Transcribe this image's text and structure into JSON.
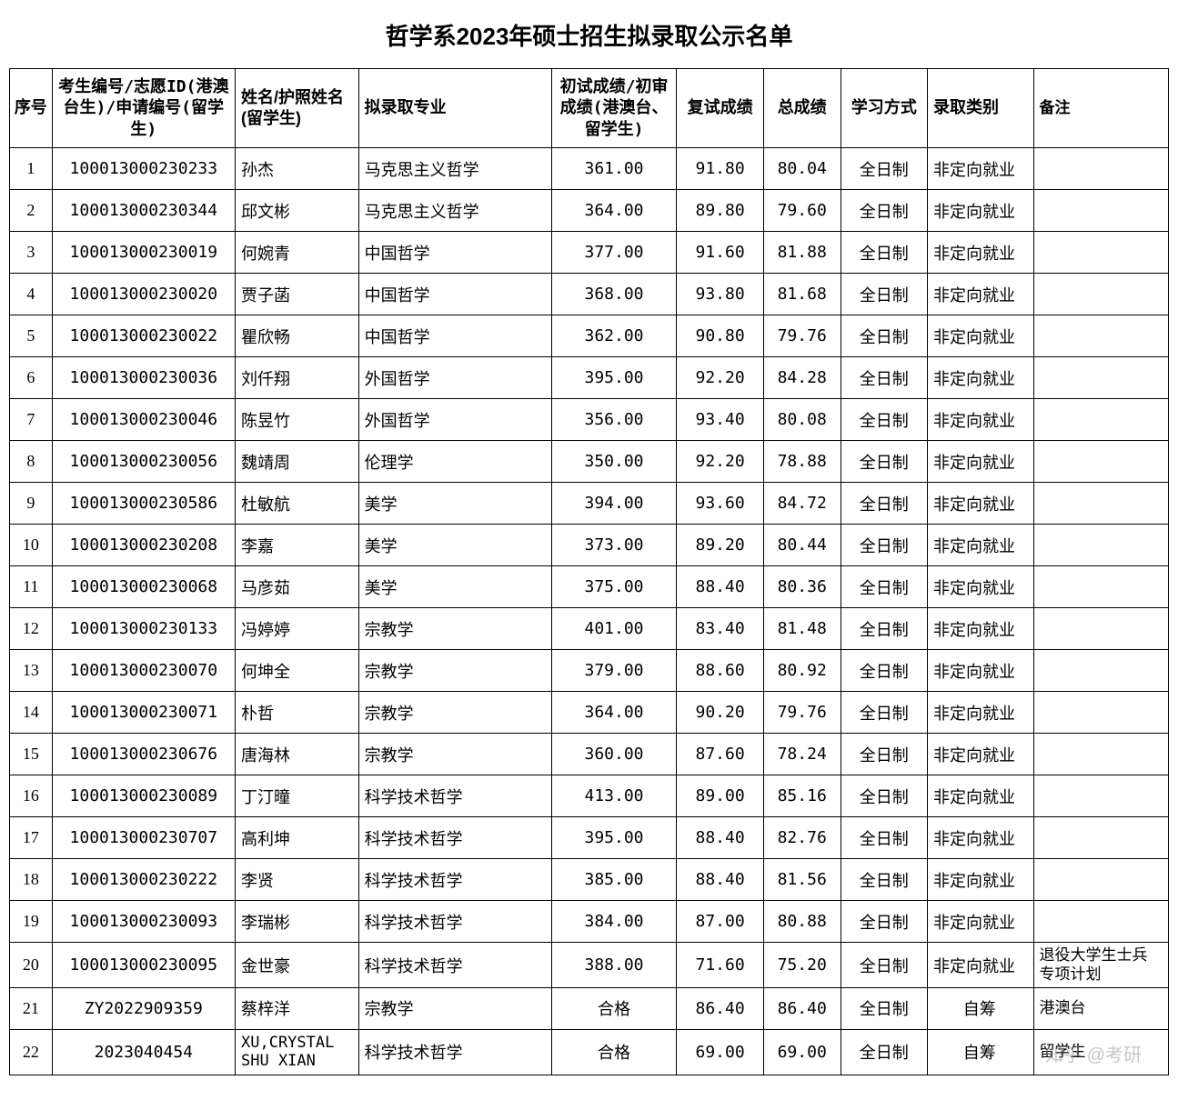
{
  "title": "哲学系2023年硕士招生拟录取公示名单",
  "watermark": "知乎 @考研",
  "columns": {
    "seq": "序号",
    "id": "考生编号/志愿ID(港澳台生)/申请编号(留学生)",
    "name": "姓名/护照姓名(留学生)",
    "major": "拟录取专业",
    "prelim": "初试成绩/初审成绩(港澳台、留学生)",
    "reexam": "复试成绩",
    "total": "总成绩",
    "mode": "学习方式",
    "type": "录取类别",
    "note": "备注"
  },
  "rows": [
    {
      "seq": "1",
      "id": "100013000230233",
      "name": "孙杰",
      "major": "马克思主义哲学",
      "prelim": "361.00",
      "reexam": "91.80",
      "total": "80.04",
      "mode": "全日制",
      "type": "非定向就业",
      "note": ""
    },
    {
      "seq": "2",
      "id": "100013000230344",
      "name": "邱文彬",
      "major": "马克思主义哲学",
      "prelim": "364.00",
      "reexam": "89.80",
      "total": "79.60",
      "mode": "全日制",
      "type": "非定向就业",
      "note": ""
    },
    {
      "seq": "3",
      "id": "100013000230019",
      "name": "何婉青",
      "major": "中国哲学",
      "prelim": "377.00",
      "reexam": "91.60",
      "total": "81.88",
      "mode": "全日制",
      "type": "非定向就业",
      "note": ""
    },
    {
      "seq": "4",
      "id": "100013000230020",
      "name": "贾子菡",
      "major": "中国哲学",
      "prelim": "368.00",
      "reexam": "93.80",
      "total": "81.68",
      "mode": "全日制",
      "type": "非定向就业",
      "note": ""
    },
    {
      "seq": "5",
      "id": "100013000230022",
      "name": "瞿欣畅",
      "major": "中国哲学",
      "prelim": "362.00",
      "reexam": "90.80",
      "total": "79.76",
      "mode": "全日制",
      "type": "非定向就业",
      "note": ""
    },
    {
      "seq": "6",
      "id": "100013000230036",
      "name": "刘仟翔",
      "major": "外国哲学",
      "prelim": "395.00",
      "reexam": "92.20",
      "total": "84.28",
      "mode": "全日制",
      "type": "非定向就业",
      "note": ""
    },
    {
      "seq": "7",
      "id": "100013000230046",
      "name": "陈昱竹",
      "major": "外国哲学",
      "prelim": "356.00",
      "reexam": "93.40",
      "total": "80.08",
      "mode": "全日制",
      "type": "非定向就业",
      "note": ""
    },
    {
      "seq": "8",
      "id": "100013000230056",
      "name": "魏靖周",
      "major": "伦理学",
      "prelim": "350.00",
      "reexam": "92.20",
      "total": "78.88",
      "mode": "全日制",
      "type": "非定向就业",
      "note": ""
    },
    {
      "seq": "9",
      "id": "100013000230586",
      "name": "杜敏航",
      "major": "美学",
      "prelim": "394.00",
      "reexam": "93.60",
      "total": "84.72",
      "mode": "全日制",
      "type": "非定向就业",
      "note": ""
    },
    {
      "seq": "10",
      "id": "100013000230208",
      "name": "李嘉",
      "major": "美学",
      "prelim": "373.00",
      "reexam": "89.20",
      "total": "80.44",
      "mode": "全日制",
      "type": "非定向就业",
      "note": ""
    },
    {
      "seq": "11",
      "id": "100013000230068",
      "name": "马彦茹",
      "major": "美学",
      "prelim": "375.00",
      "reexam": "88.40",
      "total": "80.36",
      "mode": "全日制",
      "type": "非定向就业",
      "note": ""
    },
    {
      "seq": "12",
      "id": "100013000230133",
      "name": "冯婷婷",
      "major": "宗教学",
      "prelim": "401.00",
      "reexam": "83.40",
      "total": "81.48",
      "mode": "全日制",
      "type": "非定向就业",
      "note": ""
    },
    {
      "seq": "13",
      "id": "100013000230070",
      "name": "何坤全",
      "major": "宗教学",
      "prelim": "379.00",
      "reexam": "88.60",
      "total": "80.92",
      "mode": "全日制",
      "type": "非定向就业",
      "note": ""
    },
    {
      "seq": "14",
      "id": "100013000230071",
      "name": "朴哲",
      "major": "宗教学",
      "prelim": "364.00",
      "reexam": "90.20",
      "total": "79.76",
      "mode": "全日制",
      "type": "非定向就业",
      "note": ""
    },
    {
      "seq": "15",
      "id": "100013000230676",
      "name": "唐海林",
      "major": "宗教学",
      "prelim": "360.00",
      "reexam": "87.60",
      "total": "78.24",
      "mode": "全日制",
      "type": "非定向就业",
      "note": ""
    },
    {
      "seq": "16",
      "id": "100013000230089",
      "name": "丁汀曈",
      "major": "科学技术哲学",
      "prelim": "413.00",
      "reexam": "89.00",
      "total": "85.16",
      "mode": "全日制",
      "type": "非定向就业",
      "note": ""
    },
    {
      "seq": "17",
      "id": "100013000230707",
      "name": "高利坤",
      "major": "科学技术哲学",
      "prelim": "395.00",
      "reexam": "88.40",
      "total": "82.76",
      "mode": "全日制",
      "type": "非定向就业",
      "note": ""
    },
    {
      "seq": "18",
      "id": "100013000230222",
      "name": "李贤",
      "major": "科学技术哲学",
      "prelim": "385.00",
      "reexam": "88.40",
      "total": "81.56",
      "mode": "全日制",
      "type": "非定向就业",
      "note": ""
    },
    {
      "seq": "19",
      "id": "100013000230093",
      "name": "李瑞彬",
      "major": "科学技术哲学",
      "prelim": "384.00",
      "reexam": "87.00",
      "total": "80.88",
      "mode": "全日制",
      "type": "非定向就业",
      "note": ""
    },
    {
      "seq": "20",
      "id": "100013000230095",
      "name": "金世豪",
      "major": "科学技术哲学",
      "prelim": "388.00",
      "reexam": "71.60",
      "total": "75.20",
      "mode": "全日制",
      "type": "非定向就业",
      "note": "退役大学生士兵专项计划"
    },
    {
      "seq": "21",
      "id": "ZY2022909359",
      "name": "蔡梓洋",
      "major": "宗教学",
      "prelim": "合格",
      "reexam": "86.40",
      "total": "86.40",
      "mode": "全日制",
      "type": "自筹",
      "type_center": true,
      "note": "港澳台"
    },
    {
      "seq": "22",
      "id": "2023040454",
      "name": "XU,CRYSTAL SHU XIAN",
      "name_wrap": true,
      "major": "科学技术哲学",
      "prelim": "合格",
      "reexam": "69.00",
      "total": "69.00",
      "mode": "全日制",
      "type": "自筹",
      "type_center": true,
      "note": "留学生"
    }
  ]
}
